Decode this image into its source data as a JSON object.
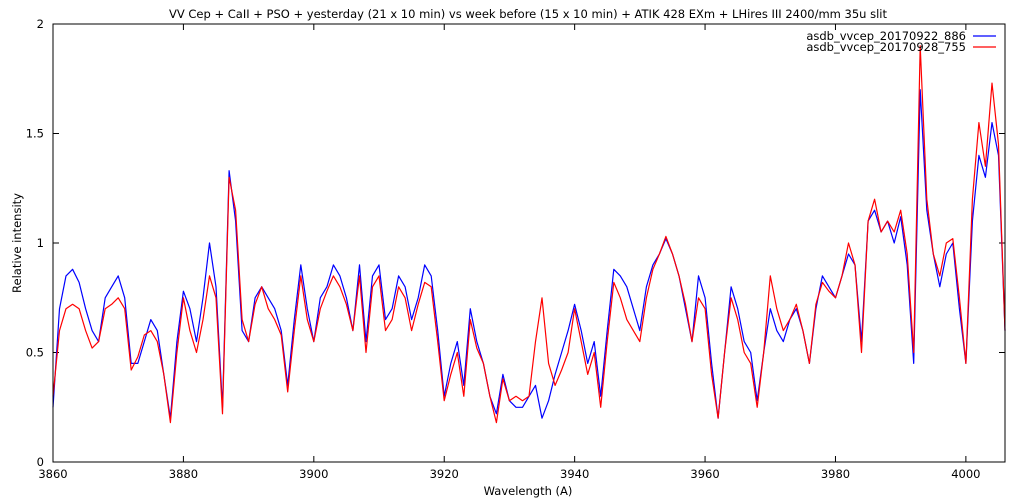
{
  "chart_data": {
    "type": "line",
    "title": "VV Cep + CaII + PSO + yesterday (21 x 10 min) vs week before (15 x 10 min) + ATIK 428 EXm + LHires III 2400/mm 35u slit",
    "xlabel": "Wavelength (A)",
    "ylabel": "Relative intensity",
    "xlim": [
      3860,
      4006
    ],
    "ylim": [
      0,
      2
    ],
    "xticks": [
      3860,
      3880,
      3900,
      3920,
      3940,
      3960,
      3980,
      4000
    ],
    "yticks": [
      0,
      0.5,
      1,
      1.5,
      2
    ],
    "ytick_labels": [
      "0",
      "0.5",
      "1",
      "1.5",
      "2"
    ],
    "grid": false,
    "legend_position": "top-right",
    "x_start": 3860,
    "x_step": 1,
    "series": [
      {
        "name": "asdb_vvcep_20170922_886",
        "color": "#0000ff",
        "values": [
          0.25,
          0.7,
          0.85,
          0.88,
          0.82,
          0.7,
          0.6,
          0.55,
          0.75,
          0.8,
          0.85,
          0.75,
          0.45,
          0.45,
          0.55,
          0.65,
          0.6,
          0.4,
          0.2,
          0.55,
          0.78,
          0.7,
          0.55,
          0.75,
          1.0,
          0.8,
          0.25,
          1.33,
          1.1,
          0.6,
          0.55,
          0.75,
          0.8,
          0.75,
          0.7,
          0.6,
          0.35,
          0.65,
          0.9,
          0.7,
          0.55,
          0.75,
          0.8,
          0.9,
          0.85,
          0.75,
          0.6,
          0.9,
          0.55,
          0.85,
          0.9,
          0.65,
          0.7,
          0.85,
          0.8,
          0.65,
          0.75,
          0.9,
          0.85,
          0.6,
          0.3,
          0.45,
          0.55,
          0.35,
          0.7,
          0.55,
          0.45,
          0.3,
          0.22,
          0.4,
          0.28,
          0.25,
          0.25,
          0.3,
          0.35,
          0.2,
          0.28,
          0.4,
          0.5,
          0.6,
          0.72,
          0.6,
          0.45,
          0.55,
          0.3,
          0.6,
          0.88,
          0.85,
          0.8,
          0.7,
          0.6,
          0.8,
          0.9,
          0.95,
          1.02,
          0.95,
          0.85,
          0.7,
          0.55,
          0.85,
          0.75,
          0.45,
          0.2,
          0.5,
          0.8,
          0.7,
          0.55,
          0.5,
          0.28,
          0.5,
          0.7,
          0.6,
          0.55,
          0.65,
          0.7,
          0.6,
          0.45,
          0.7,
          0.85,
          0.8,
          0.75,
          0.85,
          0.95,
          0.9,
          0.55,
          1.1,
          1.15,
          1.05,
          1.1,
          1.0,
          1.12,
          0.9,
          0.45,
          1.7,
          1.15,
          0.95,
          0.8,
          0.95,
          1.0,
          0.7,
          0.45,
          1.1,
          1.4,
          1.3,
          1.55,
          1.4,
          0.6
        ]
      },
      {
        "name": "asdb_vvcep_20170928_755",
        "color": "#ff0000",
        "values": [
          0.3,
          0.6,
          0.7,
          0.72,
          0.7,
          0.6,
          0.52,
          0.55,
          0.7,
          0.72,
          0.75,
          0.7,
          0.42,
          0.48,
          0.58,
          0.6,
          0.55,
          0.4,
          0.18,
          0.5,
          0.75,
          0.6,
          0.5,
          0.65,
          0.85,
          0.75,
          0.22,
          1.3,
          1.15,
          0.65,
          0.55,
          0.72,
          0.8,
          0.7,
          0.65,
          0.58,
          0.32,
          0.6,
          0.85,
          0.65,
          0.55,
          0.7,
          0.78,
          0.85,
          0.8,
          0.72,
          0.6,
          0.85,
          0.5,
          0.8,
          0.85,
          0.6,
          0.65,
          0.8,
          0.75,
          0.6,
          0.72,
          0.82,
          0.8,
          0.55,
          0.28,
          0.4,
          0.5,
          0.3,
          0.65,
          0.52,
          0.45,
          0.3,
          0.18,
          0.38,
          0.28,
          0.3,
          0.28,
          0.3,
          0.55,
          0.75,
          0.45,
          0.35,
          0.42,
          0.5,
          0.7,
          0.55,
          0.4,
          0.5,
          0.25,
          0.55,
          0.82,
          0.75,
          0.65,
          0.6,
          0.55,
          0.75,
          0.88,
          0.95,
          1.03,
          0.95,
          0.85,
          0.72,
          0.55,
          0.75,
          0.7,
          0.4,
          0.2,
          0.5,
          0.75,
          0.65,
          0.5,
          0.45,
          0.25,
          0.5,
          0.85,
          0.7,
          0.6,
          0.65,
          0.72,
          0.6,
          0.45,
          0.72,
          0.82,
          0.78,
          0.75,
          0.85,
          1.0,
          0.9,
          0.5,
          1.1,
          1.2,
          1.05,
          1.1,
          1.05,
          1.15,
          0.95,
          0.5,
          1.9,
          1.2,
          0.95,
          0.85,
          1.0,
          1.02,
          0.75,
          0.45,
          1.2,
          1.55,
          1.35,
          1.73,
          1.45,
          0.6
        ]
      }
    ]
  }
}
